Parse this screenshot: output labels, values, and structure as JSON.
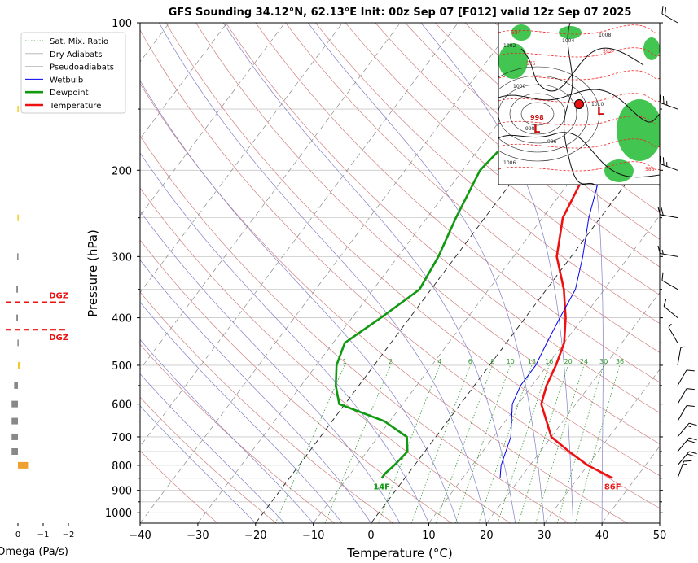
{
  "chart_data": [
    {
      "type": "line",
      "title": "GFS Sounding 34.12°N, 62.13°E Init: 00z Sep 07 [F012] valid 12z Sep 07 2025",
      "xlabel": "Temperature (°C)",
      "ylabel": "Pressure (hPa)",
      "xlim": [
        -40,
        50
      ],
      "ylim": [
        1050,
        100
      ],
      "yscale": "log",
      "grid": true,
      "legend_position": "top-left",
      "x_ticks": [
        "−40",
        "−30",
        "−20",
        "−10",
        "0",
        "10",
        "20",
        "30",
        "40",
        "50"
      ],
      "y_ticks": [
        "100",
        "200",
        "300",
        "400",
        "500",
        "600",
        "700",
        "800",
        "900",
        "1000"
      ],
      "legend": [
        "Sat. Mix. Ratio",
        "Dry Adiabats",
        "Pseudoadiabats",
        "Wetbulb",
        "Dewpoint",
        "Temperature"
      ],
      "mixing_ratio_labels": [
        "1",
        "2",
        "4",
        "6",
        "8",
        "10",
        "13",
        "16",
        "20",
        "24",
        "30",
        "36"
      ],
      "surface_labels": {
        "dewpoint": "14F",
        "temperature": "86F"
      },
      "series": [
        {
          "name": "Temperature",
          "color": "#ee1111",
          "points": [
            [
              36,
              850
            ],
            [
              30,
              800
            ],
            [
              25,
              750
            ],
            [
              20,
              700
            ],
            [
              14,
              600
            ],
            [
              12.5,
              550
            ],
            [
              11.5,
              500
            ],
            [
              10,
              450
            ],
            [
              7,
              400
            ],
            [
              3,
              350
            ],
            [
              -2.5,
              300
            ],
            [
              -6.5,
              250
            ],
            [
              -8.5,
              200
            ],
            [
              -9.5,
              175
            ],
            [
              -10,
              150
            ],
            [
              -10,
              100
            ]
          ]
        },
        {
          "name": "Dewpoint",
          "color": "#119911",
          "points": [
            [
              -4,
              850
            ],
            [
              -4,
              830
            ],
            [
              -3.5,
              800
            ],
            [
              -3,
              750
            ],
            [
              -5,
              700
            ],
            [
              -11,
              650
            ],
            [
              -21,
              600
            ],
            [
              -24,
              550
            ],
            [
              -26.5,
              500
            ],
            [
              -28,
              450
            ],
            [
              -25,
              400
            ],
            [
              -22,
              350
            ],
            [
              -23,
              300
            ],
            [
              -25,
              250
            ],
            [
              -27,
              200
            ],
            [
              -26,
              175
            ],
            [
              -24,
              150
            ],
            [
              -19,
              100
            ]
          ]
        },
        {
          "name": "Wetbulb",
          "color": "#0000ee",
          "points": [
            [
              16.5,
              850
            ],
            [
              15,
              800
            ],
            [
              13,
              700
            ],
            [
              9,
              600
            ],
            [
              8,
              550
            ],
            [
              8,
              500
            ],
            [
              7,
              450
            ],
            [
              6,
              400
            ],
            [
              5,
              350
            ],
            [
              2,
              300
            ],
            [
              -2,
              250
            ],
            [
              -6,
              200
            ],
            [
              -9,
              175
            ],
            [
              -10,
              150
            ]
          ]
        }
      ]
    },
    {
      "type": "bar",
      "xlabel": "Omega (Pa/s)",
      "xlim": [
        0.2,
        -2.2
      ],
      "x_ticks": [
        "0",
        "−1",
        "−2"
      ],
      "dgz_label": "DGZ",
      "dgz_pressures": [
        372,
        423
      ],
      "levels": [
        {
          "p": 800,
          "omega": -0.4,
          "color": "#f0a030"
        },
        {
          "p": 750,
          "omega": 0.25,
          "color": "#888888"
        },
        {
          "p": 700,
          "omega": 0.25,
          "color": "#888888"
        },
        {
          "p": 650,
          "omega": 0.25,
          "color": "#888888"
        },
        {
          "p": 600,
          "omega": 0.25,
          "color": "#888888"
        },
        {
          "p": 550,
          "omega": 0.15,
          "color": "#888888"
        },
        {
          "p": 500,
          "omega": -0.1,
          "color": "#f0c830"
        },
        {
          "p": 450,
          "omega": 0.02,
          "color": "#888888"
        },
        {
          "p": 400,
          "omega": 0.06,
          "color": "#888888"
        },
        {
          "p": 350,
          "omega": 0.06,
          "color": "#888888"
        },
        {
          "p": 300,
          "omega": 0.03,
          "color": "#888888"
        },
        {
          "p": 250,
          "omega": 0.02,
          "color": "#f0d020"
        },
        {
          "p": 150,
          "omega": 0.02,
          "color": "#f0d020"
        }
      ]
    }
  ],
  "winds": [
    {
      "p": 100,
      "dir": 300,
      "spd": 20
    },
    {
      "p": 150,
      "dir": 290,
      "spd": 25
    },
    {
      "p": 200,
      "dir": 290,
      "spd": 25
    },
    {
      "p": 250,
      "dir": 280,
      "spd": 20
    },
    {
      "p": 300,
      "dir": 280,
      "spd": 15
    },
    {
      "p": 350,
      "dir": 300,
      "spd": 10
    },
    {
      "p": 400,
      "dir": 310,
      "spd": 10
    },
    {
      "p": 450,
      "dir": 330,
      "spd": 5
    },
    {
      "p": 500,
      "dir": 10,
      "spd": 5
    },
    {
      "p": 550,
      "dir": 30,
      "spd": 10
    },
    {
      "p": 600,
      "dir": 30,
      "spd": 10
    },
    {
      "p": 650,
      "dir": 30,
      "spd": 10
    },
    {
      "p": 700,
      "dir": 40,
      "spd": 15
    },
    {
      "p": 750,
      "dir": 40,
      "spd": 20
    },
    {
      "p": 800,
      "dir": 40,
      "spd": 20
    },
    {
      "p": 850,
      "dir": 20,
      "spd": 15
    }
  ],
  "inset_map": {
    "isobar_labels": [
      "1002",
      "1004",
      "1000",
      "998",
      "1010",
      "1008",
      "1006",
      "996"
    ],
    "height_labels": [
      "584",
      "576",
      "588",
      "592"
    ],
    "low_label": "L",
    "low_value": "998"
  },
  "colors": {
    "dry_adiabat": "#d08080",
    "moist_adiabat": "#8080c8",
    "mixing_ratio": "#339933",
    "isotherm": "#777777",
    "isobar": "#c8c8c8",
    "map_green": "#22bb33",
    "map_red": "#ee2222"
  }
}
